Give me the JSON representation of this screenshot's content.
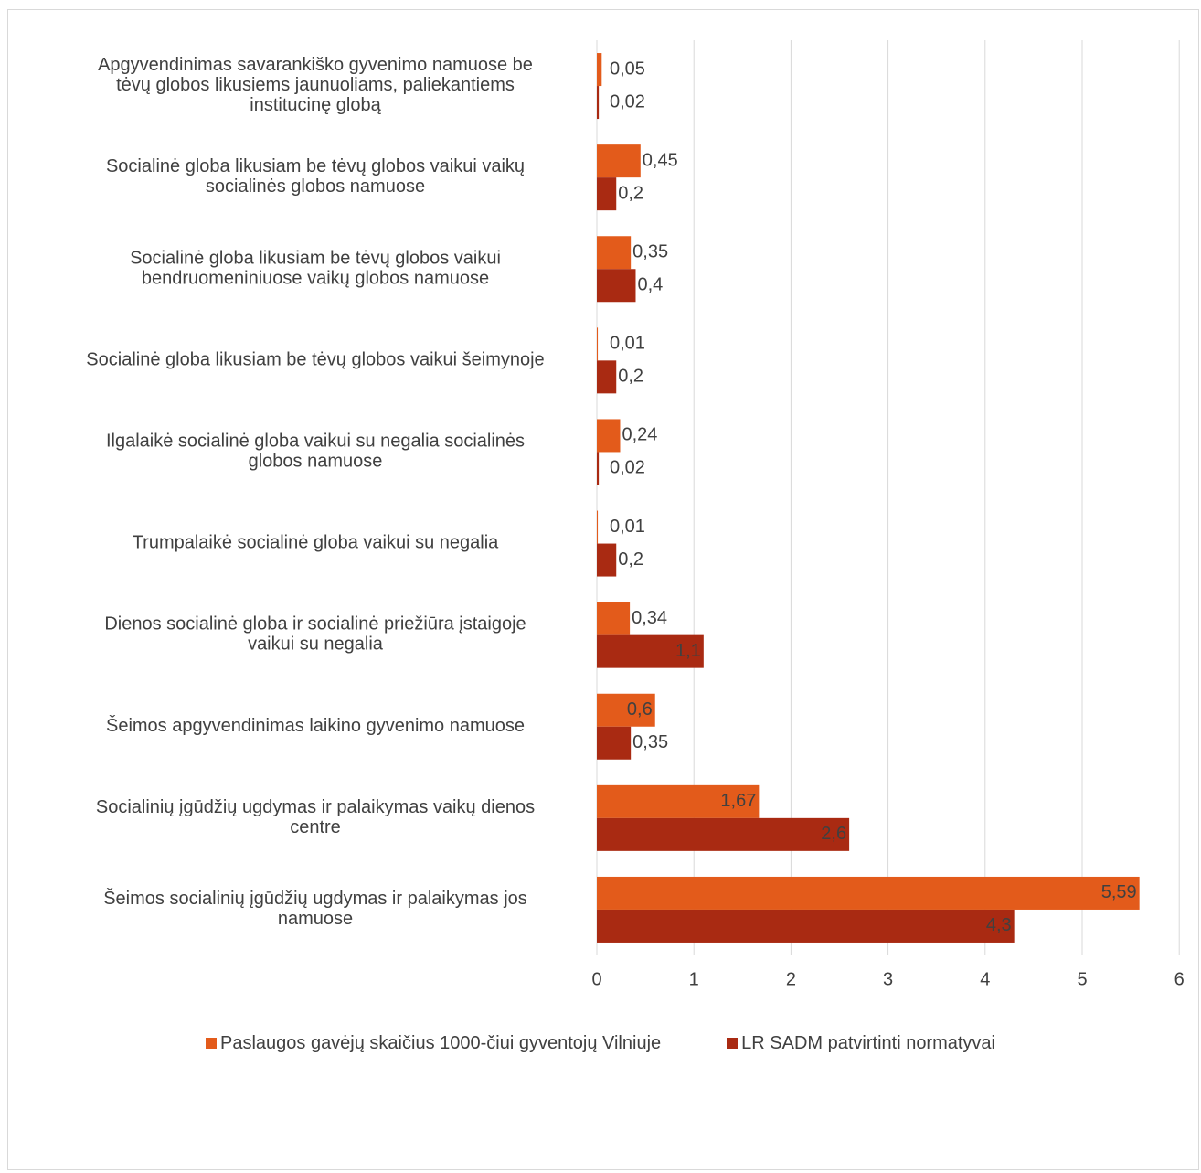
{
  "chart_data": {
    "type": "bar",
    "orientation": "horizontal",
    "categories": [
      [
        "Apgyvendinimas savarankiško gyvenimo namuose be",
        "tėvų globos likusiems jaunuoliams, paliekantiems",
        "institucinę globą"
      ],
      [
        "Socialinė globa likusiam be tėvų globos vaikui vaikų",
        "socialinės globos namuose"
      ],
      [
        "Socialinė globa likusiam be tėvų globos vaikui",
        "bendruomeniniuose vaikų globos namuose"
      ],
      [
        "Socialinė globa likusiam be tėvų globos vaikui šeimynoje"
      ],
      [
        "Ilgalaikė socialinė globa vaikui su negalia socialinės",
        "globos namuose"
      ],
      [
        "Trumpalaikė socialinė globa vaikui  su negalia"
      ],
      [
        "Dienos socialinė globa ir socialinė priežiūra įstaigoje",
        "vaikui su negalia"
      ],
      [
        "Šeimos apgyvendinimas laikino gyvenimo namuose"
      ],
      [
        "Socialinių įgūdžių ugdymas ir palaikymas vaikų dienos",
        "centre"
      ],
      [
        "Šeimos socialinių įgūdžių ugdymas ir palaikymas jos",
        "namuose"
      ]
    ],
    "series": [
      {
        "name": "Paslaugos gavėjų skaičius 1000-čiui gyventojų Vilniuje",
        "color": "#e35b1b",
        "values": [
          0.05,
          0.45,
          0.35,
          0.01,
          0.24,
          0.01,
          0.34,
          0.6,
          1.67,
          5.59
        ],
        "labels": [
          "0,05",
          "0,45",
          "0,35",
          "0,01",
          "0,24",
          "0,01",
          "0,34",
          "0,6",
          "1,67",
          "5,59"
        ]
      },
      {
        "name": "LR SADM patvirtinti normatyvai",
        "color": "#a92a12",
        "values": [
          0.02,
          0.2,
          0.4,
          0.2,
          0.02,
          0.2,
          1.1,
          0.35,
          2.6,
          4.3
        ],
        "labels": [
          "0,02",
          "0,2",
          "0,4",
          "0,2",
          "0,02",
          "0,2",
          "1,1",
          "0,35",
          "2,6",
          "4,3"
        ]
      }
    ],
    "xlim": [
      0,
      6
    ],
    "xticks": [
      "0",
      "1",
      "2",
      "3",
      "4",
      "5",
      "6"
    ],
    "grid": "vertical",
    "legend_position": "bottom",
    "title": "",
    "xlabel": "",
    "ylabel": ""
  }
}
